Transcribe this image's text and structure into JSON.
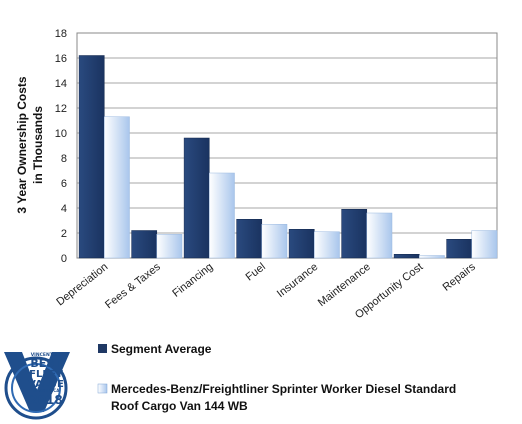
{
  "chart_data": {
    "type": "bar",
    "title": "",
    "xlabel": "",
    "ylabel": [
      "3 Year Ownership Costs",
      "in Thousands"
    ],
    "ylim": [
      0,
      18
    ],
    "yticks": [
      "0",
      "2",
      "4",
      "6",
      "8",
      "10",
      "12",
      "14",
      "16",
      "18"
    ],
    "grid": true,
    "legend_position": "bottom-left",
    "categories": [
      "Depreciation",
      "Fees & Taxes",
      "Financing",
      "Fuel",
      "Insurance",
      "Maintenance",
      "Opportunity Cost",
      "Repairs"
    ],
    "series": [
      {
        "name": "Segment Average",
        "color": "#1f3864",
        "values": [
          16.2,
          2.2,
          9.6,
          3.1,
          2.3,
          3.9,
          0.3,
          1.5
        ]
      },
      {
        "name": [
          "Mercedes-Benz/Freightliner Sprinter Worker Diesel Standard",
          "Roof Cargo Van 144 WB"
        ],
        "color": "#bcd3f0",
        "values": [
          11.3,
          1.9,
          6.8,
          2.7,
          2.1,
          3.6,
          0.2,
          2.2
        ]
      }
    ]
  },
  "badge": {
    "line1": "VINCENTRIC",
    "line2": "BEST",
    "line3": "FLEET",
    "line4": "VALUE",
    "line5": "IN AMERICA",
    "year": "2018"
  }
}
